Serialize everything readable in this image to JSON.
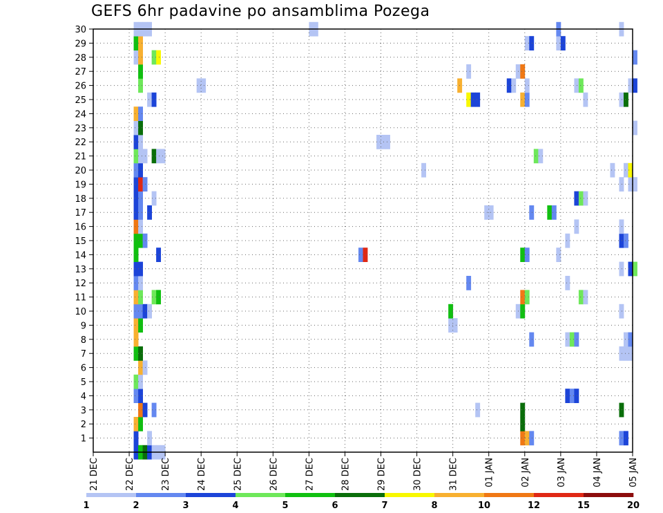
{
  "chart_data": {
    "type": "heatmap",
    "title": "GEFS 6hr padavine po ansamblima Pozega",
    "xlabel": "",
    "ylabel": "",
    "y_ticks": [
      "1",
      "2",
      "3",
      "4",
      "5",
      "6",
      "7",
      "8",
      "9",
      "10",
      "11",
      "12",
      "13",
      "14",
      "15",
      "16",
      "17",
      "18",
      "19",
      "20",
      "21",
      "22",
      "23",
      "24",
      "25",
      "26",
      "27",
      "28",
      "29",
      "30"
    ],
    "x_ticks": [
      "21 DEC",
      "22 DEC",
      "23 DEC",
      "24 DEC",
      "25 DEC",
      "26 DEC",
      "27 DEC",
      "28 DEC",
      "29 DEC",
      "30 DEC",
      "31 DEC",
      "01 JAN",
      "02 JAN",
      "03 JAN",
      "04 JAN",
      "05 JAN"
    ],
    "x_range_days": [
      0,
      15
    ],
    "y_range": [
      0,
      30
    ],
    "grid": true,
    "levels": [
      "1",
      "2",
      "3",
      "4",
      "5",
      "6",
      "7",
      "8",
      "10",
      "12",
      "15",
      "20"
    ],
    "colors": [
      "#b4c4f4",
      "#6488f0",
      "#1c44d8",
      "#6ee85a",
      "#10c010",
      "#0a6e0a",
      "#f8f800",
      "#f8b030",
      "#f07814",
      "#e02814",
      "#8c0c0c"
    ],
    "cells": [
      [
        1.125,
        0,
        2
      ],
      [
        1.25,
        0,
        4
      ],
      [
        1.375,
        0,
        5
      ],
      [
        1.5,
        0,
        2
      ],
      [
        1.625,
        0,
        0
      ],
      [
        1.75,
        0,
        0
      ],
      [
        1.875,
        0,
        0
      ],
      [
        1.125,
        1,
        2
      ],
      [
        1.5,
        1,
        0
      ],
      [
        14.625,
        1,
        1
      ],
      [
        14.75,
        1,
        2
      ],
      [
        11.875,
        1,
        8
      ],
      [
        12.0,
        1,
        7
      ],
      [
        12.125,
        1,
        1
      ],
      [
        1.125,
        2,
        7
      ],
      [
        1.25,
        2,
        4
      ],
      [
        11.875,
        2,
        5
      ],
      [
        11.875,
        3,
        5
      ],
      [
        1.25,
        3,
        8
      ],
      [
        1.375,
        3,
        2
      ],
      [
        1.625,
        3,
        1
      ],
      [
        10.625,
        3,
        0
      ],
      [
        14.625,
        3,
        5
      ],
      [
        1.125,
        4,
        1
      ],
      [
        1.25,
        4,
        2
      ],
      [
        13.125,
        4,
        2
      ],
      [
        13.25,
        4,
        1
      ],
      [
        13.375,
        4,
        2
      ],
      [
        1.125,
        5,
        3
      ],
      [
        1.25,
        5,
        0
      ],
      [
        1.25,
        6,
        7
      ],
      [
        1.375,
        6,
        0
      ],
      [
        1.125,
        7,
        4
      ],
      [
        1.25,
        7,
        5
      ],
      [
        14.625,
        7,
        0
      ],
      [
        14.75,
        7,
        0
      ],
      [
        14.875,
        7,
        0
      ],
      [
        1.125,
        8,
        7
      ],
      [
        12.125,
        8,
        1
      ],
      [
        13.125,
        8,
        0
      ],
      [
        13.25,
        8,
        3
      ],
      [
        13.375,
        8,
        1
      ],
      [
        14.75,
        8,
        0
      ],
      [
        14.875,
        8,
        1
      ],
      [
        1.125,
        9,
        7
      ],
      [
        1.25,
        9,
        4
      ],
      [
        9.875,
        9,
        0
      ],
      [
        10.0,
        9,
        0
      ],
      [
        1.125,
        10,
        1
      ],
      [
        1.25,
        10,
        1
      ],
      [
        1.375,
        10,
        2
      ],
      [
        1.5,
        10,
        0
      ],
      [
        9.875,
        10,
        4
      ],
      [
        11.75,
        10,
        0
      ],
      [
        11.875,
        10,
        4
      ],
      [
        14.625,
        10,
        0
      ],
      [
        1.125,
        11,
        7
      ],
      [
        1.25,
        11,
        3
      ],
      [
        1.625,
        11,
        3
      ],
      [
        1.75,
        11,
        4
      ],
      [
        11.875,
        11,
        8
      ],
      [
        12.0,
        11,
        3
      ],
      [
        13.5,
        11,
        3
      ],
      [
        13.625,
        11,
        0
      ],
      [
        1.125,
        12,
        1
      ],
      [
        1.25,
        12,
        0
      ],
      [
        10.375,
        12,
        1
      ],
      [
        13.125,
        12,
        0
      ],
      [
        1.125,
        13,
        2
      ],
      [
        1.25,
        13,
        2
      ],
      [
        14.625,
        13,
        0
      ],
      [
        14.875,
        13,
        2
      ],
      [
        15.0,
        13,
        3
      ],
      [
        1.125,
        14,
        4
      ],
      [
        1.75,
        14,
        2
      ],
      [
        7.375,
        14,
        1
      ],
      [
        7.5,
        14,
        9
      ],
      [
        11.875,
        14,
        4
      ],
      [
        12.0,
        14,
        1
      ],
      [
        12.875,
        14,
        0
      ],
      [
        1.125,
        15,
        4
      ],
      [
        1.25,
        15,
        4
      ],
      [
        1.375,
        15,
        1
      ],
      [
        13.125,
        15,
        0
      ],
      [
        14.625,
        15,
        2
      ],
      [
        14.75,
        15,
        1
      ],
      [
        1.125,
        16,
        8
      ],
      [
        1.25,
        16,
        0
      ],
      [
        13.375,
        16,
        0
      ],
      [
        14.625,
        16,
        0
      ],
      [
        1.125,
        17,
        2
      ],
      [
        1.25,
        17,
        1
      ],
      [
        1.5,
        17,
        2
      ],
      [
        10.875,
        17,
        0
      ],
      [
        11.0,
        17,
        0
      ],
      [
        12.125,
        17,
        1
      ],
      [
        12.625,
        17,
        4
      ],
      [
        12.75,
        17,
        1
      ],
      [
        1.125,
        18,
        2
      ],
      [
        1.25,
        18,
        1
      ],
      [
        1.625,
        18,
        0
      ],
      [
        13.375,
        18,
        2
      ],
      [
        13.5,
        18,
        3
      ],
      [
        13.625,
        18,
        0
      ],
      [
        1.125,
        19,
        2
      ],
      [
        1.25,
        19,
        9
      ],
      [
        1.375,
        19,
        1
      ],
      [
        14.625,
        19,
        0
      ],
      [
        14.875,
        19,
        0
      ],
      [
        15.0,
        19,
        0
      ],
      [
        1.125,
        20,
        1
      ],
      [
        1.25,
        20,
        2
      ],
      [
        9.125,
        20,
        0
      ],
      [
        14.375,
        20,
        0
      ],
      [
        14.75,
        20,
        0
      ],
      [
        14.875,
        20,
        6
      ],
      [
        1.125,
        21,
        3
      ],
      [
        1.25,
        21,
        0
      ],
      [
        1.375,
        21,
        0
      ],
      [
        1.625,
        21,
        5
      ],
      [
        1.75,
        21,
        0
      ],
      [
        1.875,
        21,
        0
      ],
      [
        12.25,
        21,
        3
      ],
      [
        12.375,
        21,
        0
      ],
      [
        1.125,
        22,
        2
      ],
      [
        1.25,
        22,
        0
      ],
      [
        7.875,
        22,
        0
      ],
      [
        8.0,
        22,
        0
      ],
      [
        8.125,
        22,
        0
      ],
      [
        1.125,
        23,
        0
      ],
      [
        1.25,
        23,
        5
      ],
      [
        15.0,
        23,
        0
      ],
      [
        1.125,
        24,
        7
      ],
      [
        1.25,
        24,
        1
      ],
      [
        1.5,
        25,
        0
      ],
      [
        1.625,
        25,
        2
      ],
      [
        10.375,
        25,
        6
      ],
      [
        10.5,
        25,
        2
      ],
      [
        10.625,
        25,
        2
      ],
      [
        11.875,
        25,
        7
      ],
      [
        12.0,
        25,
        1
      ],
      [
        13.625,
        25,
        0
      ],
      [
        14.625,
        25,
        0
      ],
      [
        14.75,
        25,
        5
      ],
      [
        1.25,
        26,
        3
      ],
      [
        2.875,
        26,
        0
      ],
      [
        3.0,
        26,
        0
      ],
      [
        10.125,
        26,
        7
      ],
      [
        11.5,
        26,
        2
      ],
      [
        11.625,
        26,
        0
      ],
      [
        12.0,
        26,
        0
      ],
      [
        13.375,
        26,
        0
      ],
      [
        13.5,
        26,
        3
      ],
      [
        14.875,
        26,
        0
      ],
      [
        15.0,
        26,
        2
      ],
      [
        1.25,
        27,
        4
      ],
      [
        10.375,
        27,
        0
      ],
      [
        11.75,
        27,
        0
      ],
      [
        11.875,
        27,
        8
      ],
      [
        1.125,
        28,
        0
      ],
      [
        1.25,
        28,
        7
      ],
      [
        1.625,
        28,
        3
      ],
      [
        1.75,
        28,
        6
      ],
      [
        15.0,
        28,
        1
      ],
      [
        1.125,
        29,
        4
      ],
      [
        1.25,
        29,
        7
      ],
      [
        12.0,
        29,
        0
      ],
      [
        12.125,
        29,
        2
      ],
      [
        12.875,
        29,
        0
      ],
      [
        13.0,
        29,
        2
      ],
      [
        1.125,
        30,
        0
      ],
      [
        1.25,
        30,
        0
      ],
      [
        1.375,
        30,
        0
      ],
      [
        1.5,
        30,
        0
      ],
      [
        6.0,
        30,
        0
      ],
      [
        6.125,
        30,
        0
      ],
      [
        12.875,
        30,
        1
      ],
      [
        14.625,
        30,
        0
      ]
    ]
  }
}
